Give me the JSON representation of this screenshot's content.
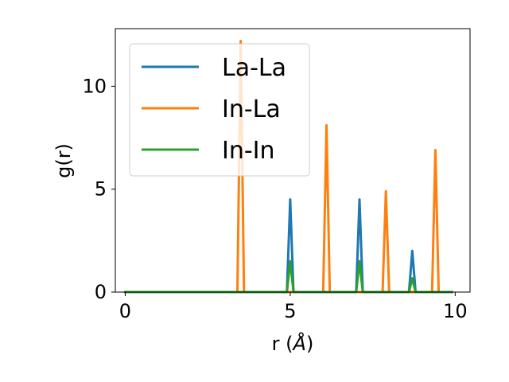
{
  "chart_data": {
    "type": "line",
    "xlabel_main": "r (",
    "xlabel_unit": "Å",
    "xlabel_close": ")",
    "ylabel": "g(r)",
    "xlim": [
      -0.3,
      10.45
    ],
    "ylim": [
      0,
      12.8
    ],
    "xticks": [
      0,
      5,
      10
    ],
    "yticks": [
      0,
      5,
      10
    ],
    "grid": false,
    "legend_position": "top-left",
    "series": [
      {
        "name": "La-La",
        "color": "#1f77b4",
        "x": [
          0,
          4.9,
          5.0,
          5.1,
          7.0,
          7.1,
          7.2,
          8.6,
          8.7,
          8.8,
          9.9
        ],
        "y": [
          0,
          0,
          4.5,
          0,
          0,
          4.5,
          0,
          0,
          2.0,
          0,
          0
        ]
      },
      {
        "name": "In-La",
        "color": "#ff7f0e",
        "x": [
          0,
          3.4,
          3.5,
          3.6,
          6.0,
          6.1,
          6.2,
          7.8,
          7.9,
          8.0,
          9.3,
          9.4,
          9.5,
          9.9
        ],
        "y": [
          0,
          0,
          12.2,
          0,
          0,
          8.1,
          0,
          0,
          4.9,
          0,
          0,
          6.9,
          0,
          0
        ]
      },
      {
        "name": "In-In",
        "color": "#2ca02c",
        "x": [
          0,
          4.9,
          5.0,
          5.1,
          7.0,
          7.1,
          7.2,
          8.6,
          8.7,
          8.8,
          9.9
        ],
        "y": [
          0,
          0,
          1.5,
          0,
          0,
          1.5,
          0,
          0,
          0.67,
          0,
          0
        ]
      }
    ]
  }
}
